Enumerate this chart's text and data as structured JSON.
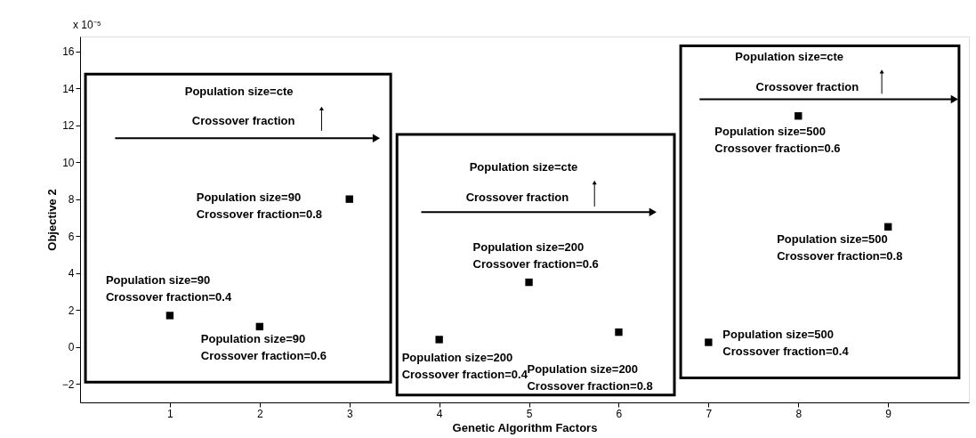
{
  "chart_data": {
    "type": "scatter",
    "xlabel": "Genetic Algorithm Factors",
    "ylabel": "Objective 2",
    "x": [
      1,
      2,
      3,
      4,
      5,
      6,
      7,
      8,
      9
    ],
    "series": [
      {
        "color": "#000000",
        "values": [
          1.7,
          1.1,
          8.0,
          0.4,
          3.5,
          0.8,
          0.25,
          12.5,
          6.5
        ]
      }
    ],
    "xlim": [
      0,
      9.9
    ],
    "xticks": [
      1,
      2,
      3,
      4,
      5,
      6,
      7,
      8,
      9
    ],
    "ylim": [
      -3,
      16.8
    ],
    "yticks": [
      -2,
      0,
      2,
      4,
      6,
      8,
      10,
      12,
      14,
      16
    ],
    "grid": false,
    "marker": "square",
    "annotations": [
      {
        "text": "Population size=90\nCrossover fraction=0.4",
        "x": 1,
        "y": 1.7
      },
      {
        "text": "Population size=90\nCrossover fraction=0.6",
        "x": 2,
        "y": 1.1
      },
      {
        "text": "Population size=90\nCrossover fraction=0.8",
        "x": 3,
        "y": 8.0
      },
      {
        "text": "Population size=200\nCrossover fraction=0.4",
        "x": 4,
        "y": 0.4
      },
      {
        "text": "Population size=200\nCrossover fraction=0.6",
        "x": 5,
        "y": 3.5
      },
      {
        "text": "Population size=200\nCrossover fraction=0.8",
        "x": 6,
        "y": 0.8
      },
      {
        "text": "Population size=500\nCrossover fraction=0.4",
        "x": 7,
        "y": 0.25
      },
      {
        "text": "Population size=500\nCrossover fraction=0.6",
        "x": 8,
        "y": 12.5
      },
      {
        "text": "Population size=500\nCrossover fraction=0.8",
        "x": 9,
        "y": 6.5
      },
      "Population size=cte",
      "Crossover fraction",
      "Population size=cte",
      "Crossover fraction",
      "Population size=cte",
      "Crossover fraction",
      "x 10⁻⁵"
    ]
  }
}
